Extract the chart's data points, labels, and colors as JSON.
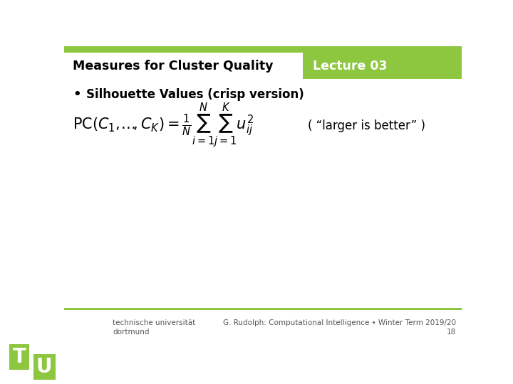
{
  "title_left": "Measures for Cluster Quality",
  "title_right": "Lecture 03",
  "header_bg_color": "#8dc63f",
  "header_text_color": "#ffffff",
  "header_left_text_color": "#000000",
  "bullet_text": "Silhouette Values (crisp version)",
  "note_text": "( “larger is better” )",
  "footer_left_line1": "technische universität",
  "footer_left_line2": "dortmund",
  "footer_right_line1": "G. Rudolph: Computational Intelligence • Winter Term 2019/20",
  "footer_right_line2": "18",
  "bg_color": "#ffffff",
  "green_color": "#8dc63f"
}
